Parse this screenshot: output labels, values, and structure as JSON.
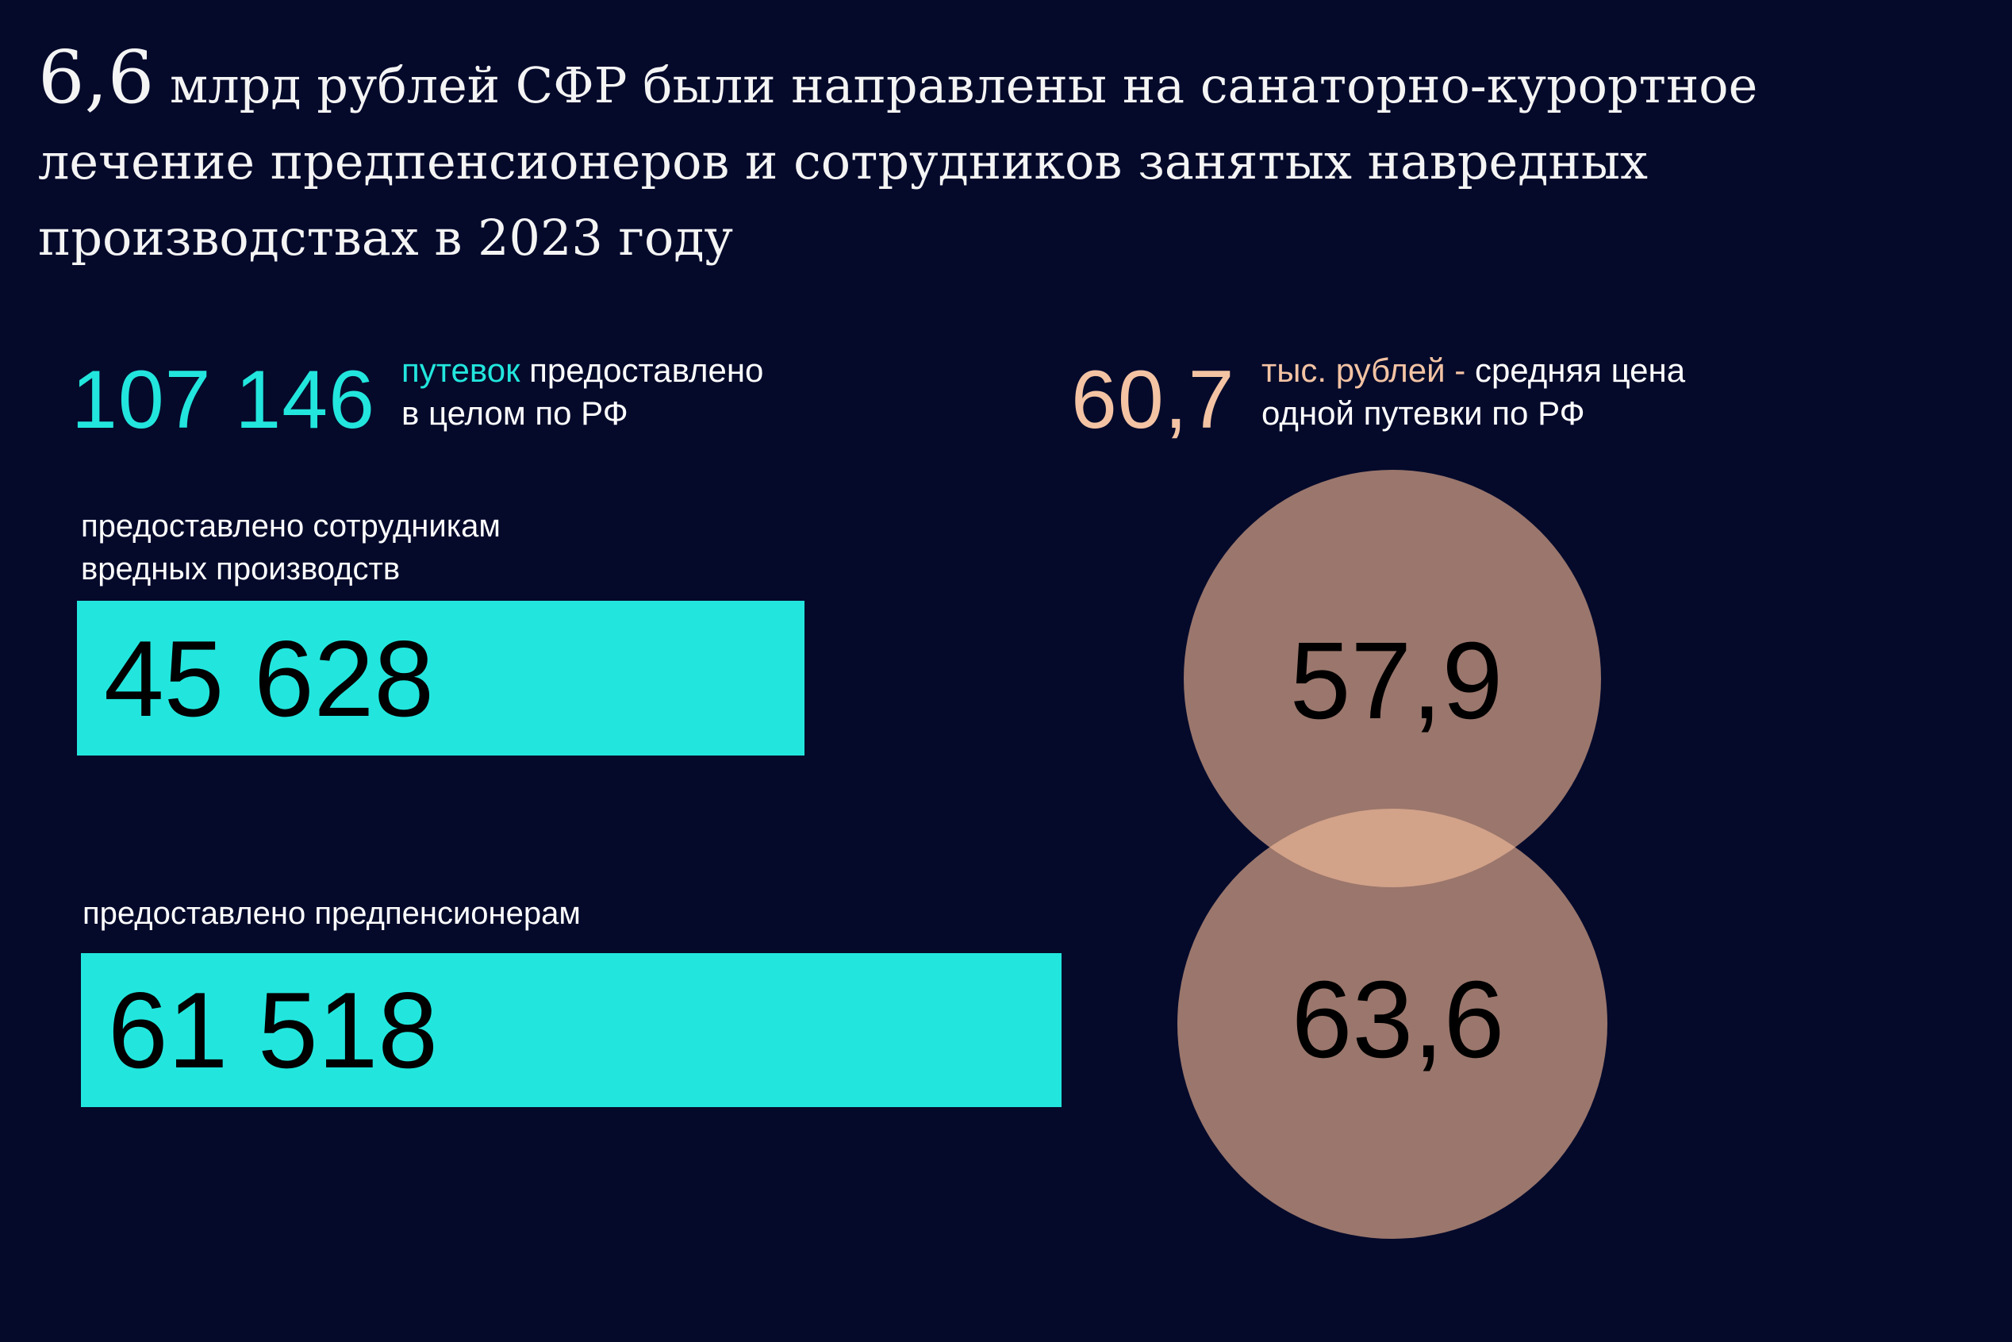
{
  "headline": {
    "number": "6,6",
    "text": " млрд рублей СФР были направлены на санаторно-курортное лечение предпенсионеров и сотрудников занятых навредных производствах в 2023 году"
  },
  "stat_total": {
    "number": "107 146",
    "highlight": "путевок",
    "text_line1": " предоставлено",
    "text_line2": "в целом по РФ",
    "color": "#22e6dd"
  },
  "stat_price": {
    "number": "60,7",
    "highlight": "тыс. рублей -",
    "text_line1": " средняя цена",
    "text_line2": "одной путевки по РФ",
    "color": "#f3c3a3"
  },
  "chart_data": [
    {
      "type": "bar",
      "categories": [
        "предоставлено сотрудникам вредных производств",
        "предоставлено предпенсионерам"
      ],
      "category_lines": [
        [
          "предоставлено сотрудникам",
          "вредных производств"
        ],
        [
          "предоставлено предпенсионерам"
        ]
      ],
      "values": [
        45628,
        61518
      ],
      "value_labels": [
        "45 628",
        "61 518"
      ],
      "color": "#22e6dd",
      "orientation": "horizontal"
    },
    {
      "type": "bubble",
      "values": [
        57.9,
        63.6
      ],
      "value_labels": [
        "57,9",
        "63,6"
      ],
      "color": "#9a766c",
      "overlap_color": "#d2a289"
    }
  ]
}
